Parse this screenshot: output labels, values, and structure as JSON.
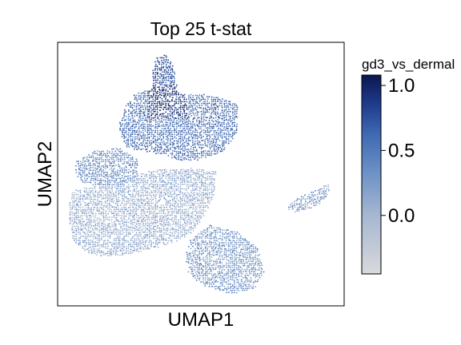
{
  "chart_data": {
    "type": "scatter",
    "title": "Top 25 t-stat",
    "xlabel": "UMAP1",
    "ylabel": "UMAP2",
    "grid": false,
    "colorbar": {
      "label": "gd3_vs_dermal",
      "vmin": -0.45,
      "vmax": 1.08,
      "ticks": [
        1.0,
        0.5,
        0.0
      ],
      "tick_labels": [
        "1.0",
        "0.5",
        "0.0"
      ],
      "colormap": [
        "#d9d9dc",
        "#a5b6d0",
        "#6f93c6",
        "#3f6ab3",
        "#1f3c8d",
        "#0b1650"
      ]
    }
  }
}
